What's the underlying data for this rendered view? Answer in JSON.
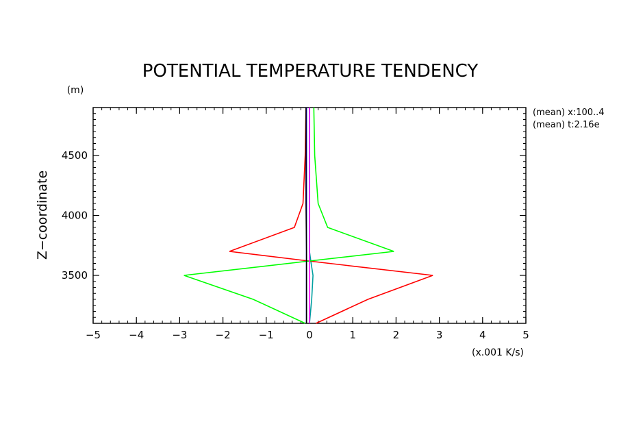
{
  "chart_data": {
    "type": "line",
    "title": "POTENTIAL TEMPERATURE TENDENCY",
    "ylabel": "Z−coordinate",
    "yunit": "(m)",
    "xunit": "(x.001 K/s)",
    "xlim": [
      -5,
      5
    ],
    "ylim": [
      3100,
      4900
    ],
    "xticks": [
      -5,
      -4,
      -3,
      -2,
      -1,
      0,
      1,
      2,
      3,
      4,
      5
    ],
    "xtick_labels": [
      "−5",
      "−4",
      "−3",
      "−2",
      "−1",
      "0",
      "1",
      "2",
      "3",
      "4",
      "5"
    ],
    "yticks": [
      3500,
      4000,
      4500
    ],
    "ytick_labels": [
      "3500",
      "4000",
      "4500"
    ],
    "annotations": [
      "(mean) x:100..4",
      "(mean) t:2.16e"
    ],
    "grid": false,
    "series": [
      {
        "color": "#00a0a0",
        "x": [
          0.0,
          0.05,
          0.08,
          0.03,
          0.0,
          0.0,
          0.0,
          0.0
        ],
        "y": [
          3100,
          3300,
          3500,
          3620,
          3700,
          3900,
          4100,
          4900
        ]
      },
      {
        "color": "#ff0000",
        "x": [
          0.15,
          1.35,
          2.85,
          -0.02,
          -1.85,
          -0.35,
          -0.15,
          -0.1,
          -0.08
        ],
        "y": [
          3100,
          3300,
          3500,
          3620,
          3700,
          3900,
          4100,
          4500,
          4900
        ]
      },
      {
        "color": "#00ff00",
        "x": [
          -0.1,
          -1.3,
          -2.9,
          0.0,
          1.95,
          0.42,
          0.2,
          0.12,
          0.1
        ],
        "y": [
          3100,
          3300,
          3500,
          3620,
          3700,
          3900,
          4100,
          4500,
          4900
        ]
      },
      {
        "color": "#ff00ff",
        "x": [
          0.0,
          0.0,
          0.0,
          0.0,
          0.0
        ],
        "y": [
          3100,
          3500,
          3700,
          4100,
          4900
        ]
      },
      {
        "color": "#0000ff",
        "x": [
          -0.07,
          -0.07,
          -0.07,
          -0.07,
          -0.07
        ],
        "y": [
          3100,
          3500,
          3700,
          4100,
          4900
        ]
      },
      {
        "color": "#000000",
        "x": [
          -0.07,
          -0.07,
          -0.07,
          -0.08,
          -0.08
        ],
        "y": [
          3100,
          3500,
          3700,
          4100,
          4900
        ]
      }
    ]
  }
}
